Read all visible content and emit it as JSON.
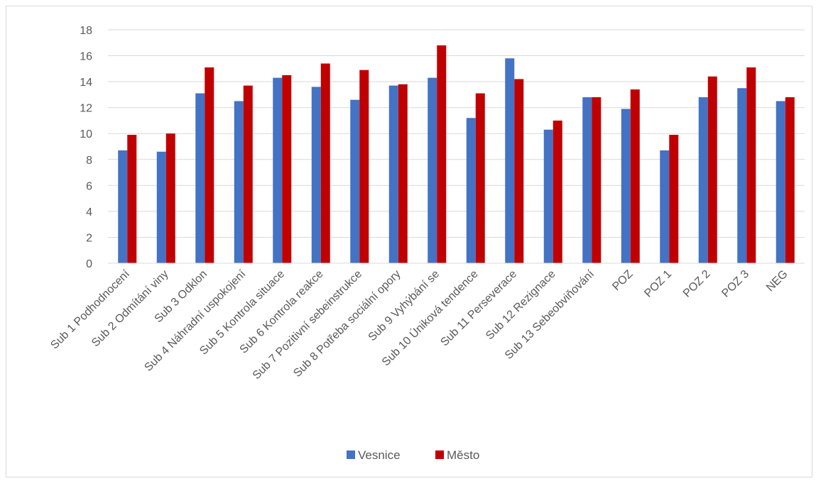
{
  "chart_data": {
    "type": "bar",
    "title": "",
    "xlabel": "",
    "ylabel": "",
    "ylim": [
      0,
      18
    ],
    "ytick_step": 2,
    "grid": true,
    "legend_position": "bottom",
    "categories": [
      "Sub 1 Podhodnocení",
      "Sub 2 Odmítání viny",
      "Sub 3 Odklon",
      "Sub 4 Náhradní uspokojení",
      "Sub 5 Kontrola situace",
      "Sub 6 Kontrola reakce",
      "Sub 7 Pozitivní sebeinstrukce",
      "Sub 8 Potřeba sociální opory",
      "Sub 9 Vyhýbání se",
      "Sub 10 Úniková tendence",
      "Sub 11 Perseverace",
      "Sub 12 Rezignace",
      "Sub 13 Sebeobviňování",
      "POZ",
      "POZ 1",
      "POZ 2",
      "POZ 3",
      "NEG"
    ],
    "series": [
      {
        "name": "Vesnice",
        "color": "#4472c4",
        "values": [
          8.7,
          8.6,
          13.1,
          12.5,
          14.3,
          13.6,
          12.6,
          13.7,
          14.3,
          11.2,
          15.8,
          10.3,
          12.8,
          11.9,
          8.7,
          12.8,
          13.5,
          12.5
        ]
      },
      {
        "name": "Město",
        "color": "#c00000",
        "values": [
          9.9,
          10.0,
          15.1,
          13.7,
          14.5,
          15.4,
          14.9,
          13.8,
          16.8,
          13.1,
          14.2,
          11.0,
          12.8,
          13.4,
          9.9,
          14.4,
          15.1,
          12.8
        ]
      }
    ]
  }
}
